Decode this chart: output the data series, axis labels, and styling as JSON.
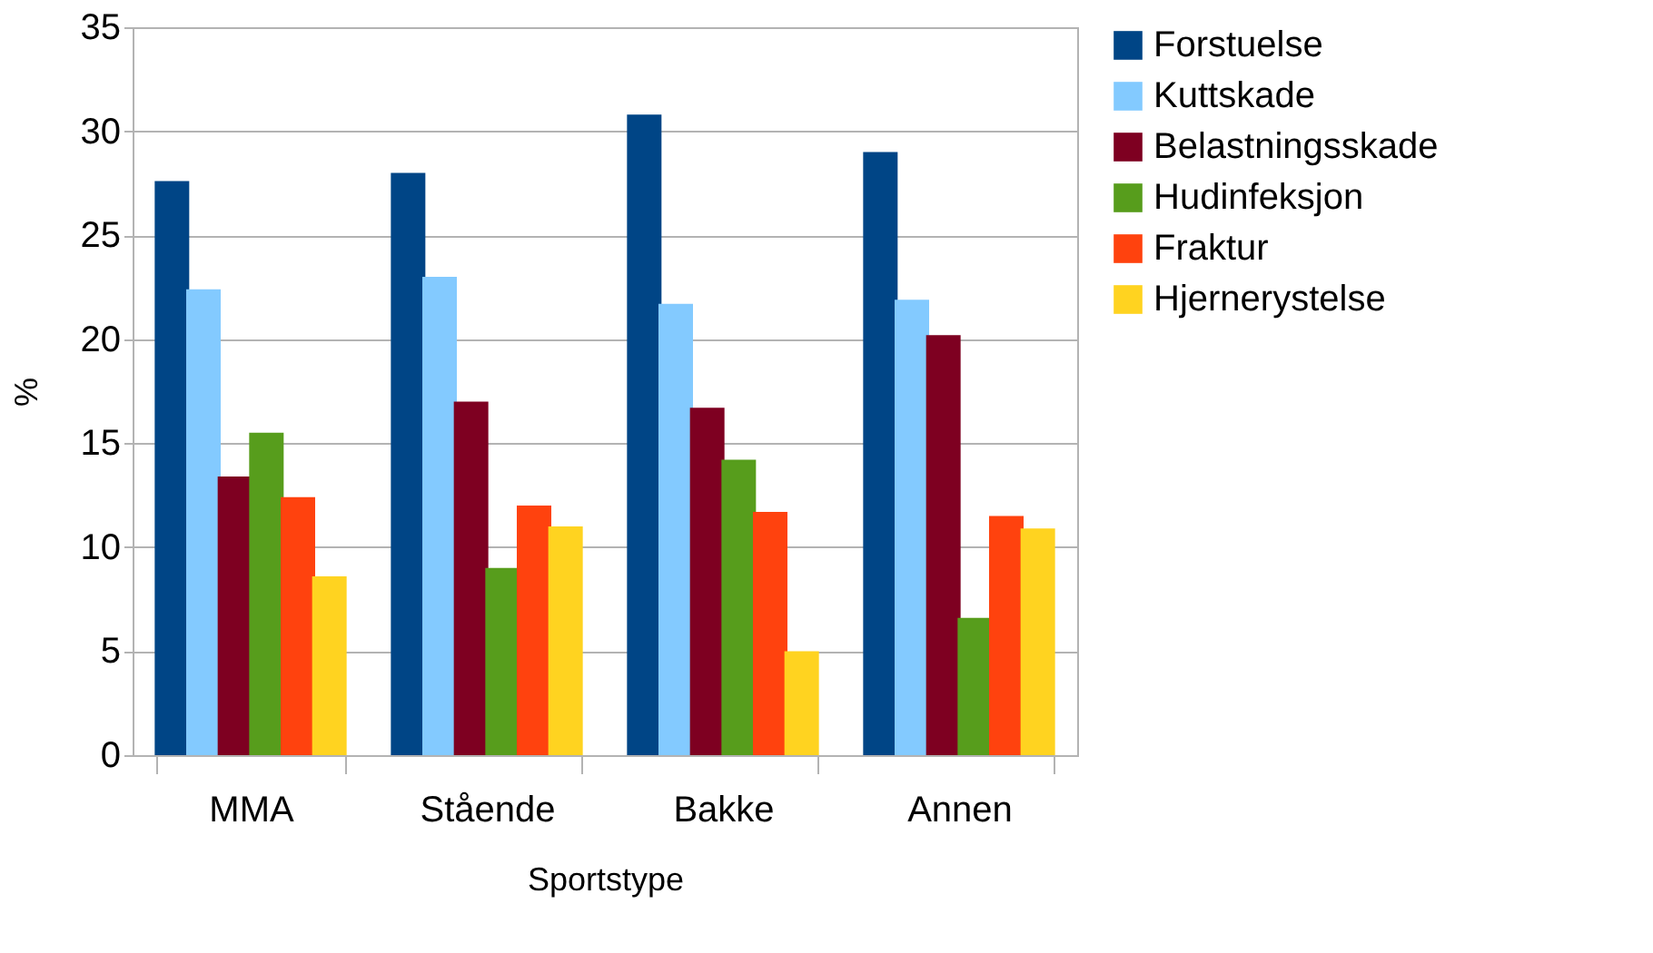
{
  "chart_data": {
    "type": "bar",
    "xlabel": "Sportstype",
    "ylabel": "%",
    "categories": [
      "MMA",
      "Stående",
      "Bakke",
      "Annen"
    ],
    "series": [
      {
        "name": "Forstuelse",
        "color": "#004586",
        "values": [
          27.6,
          28.0,
          30.8,
          29.0
        ]
      },
      {
        "name": "Kuttskade",
        "color": "#83caff",
        "values": [
          22.4,
          23.0,
          21.7,
          21.9
        ]
      },
      {
        "name": "Belastningsskade",
        "color": "#7e0021",
        "values": [
          13.4,
          17.0,
          16.7,
          20.2
        ]
      },
      {
        "name": "Hudinfeksjon",
        "color": "#579d1c",
        "values": [
          15.5,
          9.0,
          14.2,
          6.6
        ]
      },
      {
        "name": "Fraktur",
        "color": "#ff420e",
        "values": [
          12.4,
          12.0,
          11.7,
          11.5
        ]
      },
      {
        "name": "Hjernerystelse",
        "color": "#ffd320",
        "values": [
          8.6,
          11.0,
          5.0,
          10.9
        ]
      }
    ],
    "ylim": [
      0,
      35
    ],
    "yticks": [
      0,
      5,
      10,
      15,
      20,
      25,
      30,
      35
    ],
    "grid": "y",
    "legend": "right"
  }
}
